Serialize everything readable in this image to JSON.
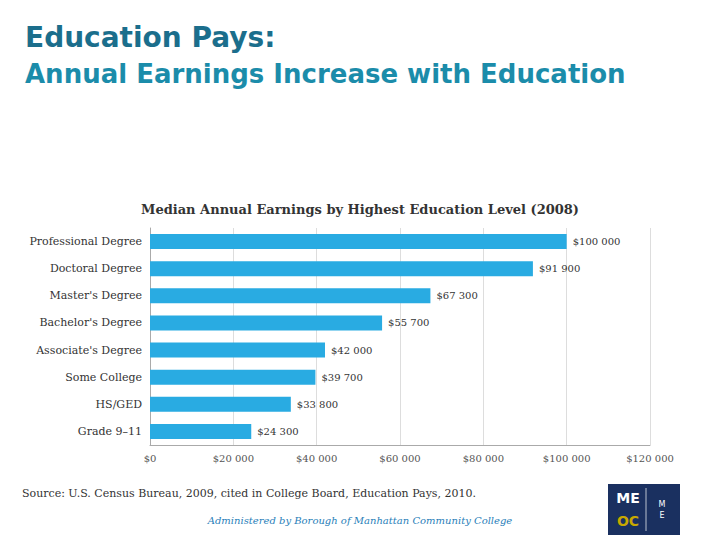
{
  "chart_data": {
    "type": "bar",
    "orientation": "horizontal",
    "title": "Education Pays:",
    "subtitle": "Annual Earnings Increase with Education",
    "annotations": [
      "Median Annual Earnings by Highest Education Level (2008)",
      "Source: U.S. Census Bureau, 2009, cited in College Board, Education Pays, 2010.",
      "Administered by Borough of Manhattan Community College",
      "ME",
      "OC",
      "M",
      "E"
    ],
    "categories": [
      "Grade 9–11",
      "HS/GED",
      "Some College",
      "Associate's Degree",
      "Bachelor's Degree",
      "Master's Degree",
      "Doctoral Degree",
      "Professional Degree"
    ],
    "values": [
      24300,
      33800,
      39700,
      42000,
      55700,
      67300,
      91900,
      100000
    ],
    "value_labels": [
      "$24 300",
      "$33 800",
      "$39 700",
      "$42 000",
      "$55 700",
      "$67 300",
      "$91 900",
      "$100 000"
    ],
    "data_labels": true,
    "color": "#29ABE2",
    "xlim": [
      0,
      120000
    ],
    "xticks": [
      {
        "value": 0,
        "label": "$0"
      },
      {
        "value": 20000,
        "label": "$20 000"
      },
      {
        "value": 40000,
        "label": "$40 000"
      },
      {
        "value": 60000,
        "label": "$60 000"
      },
      {
        "value": 80000,
        "label": "$80 000"
      },
      {
        "value": 100000,
        "label": "$100 000"
      },
      {
        "value": 120000,
        "label": "$120 000"
      }
    ],
    "grid": true
  }
}
